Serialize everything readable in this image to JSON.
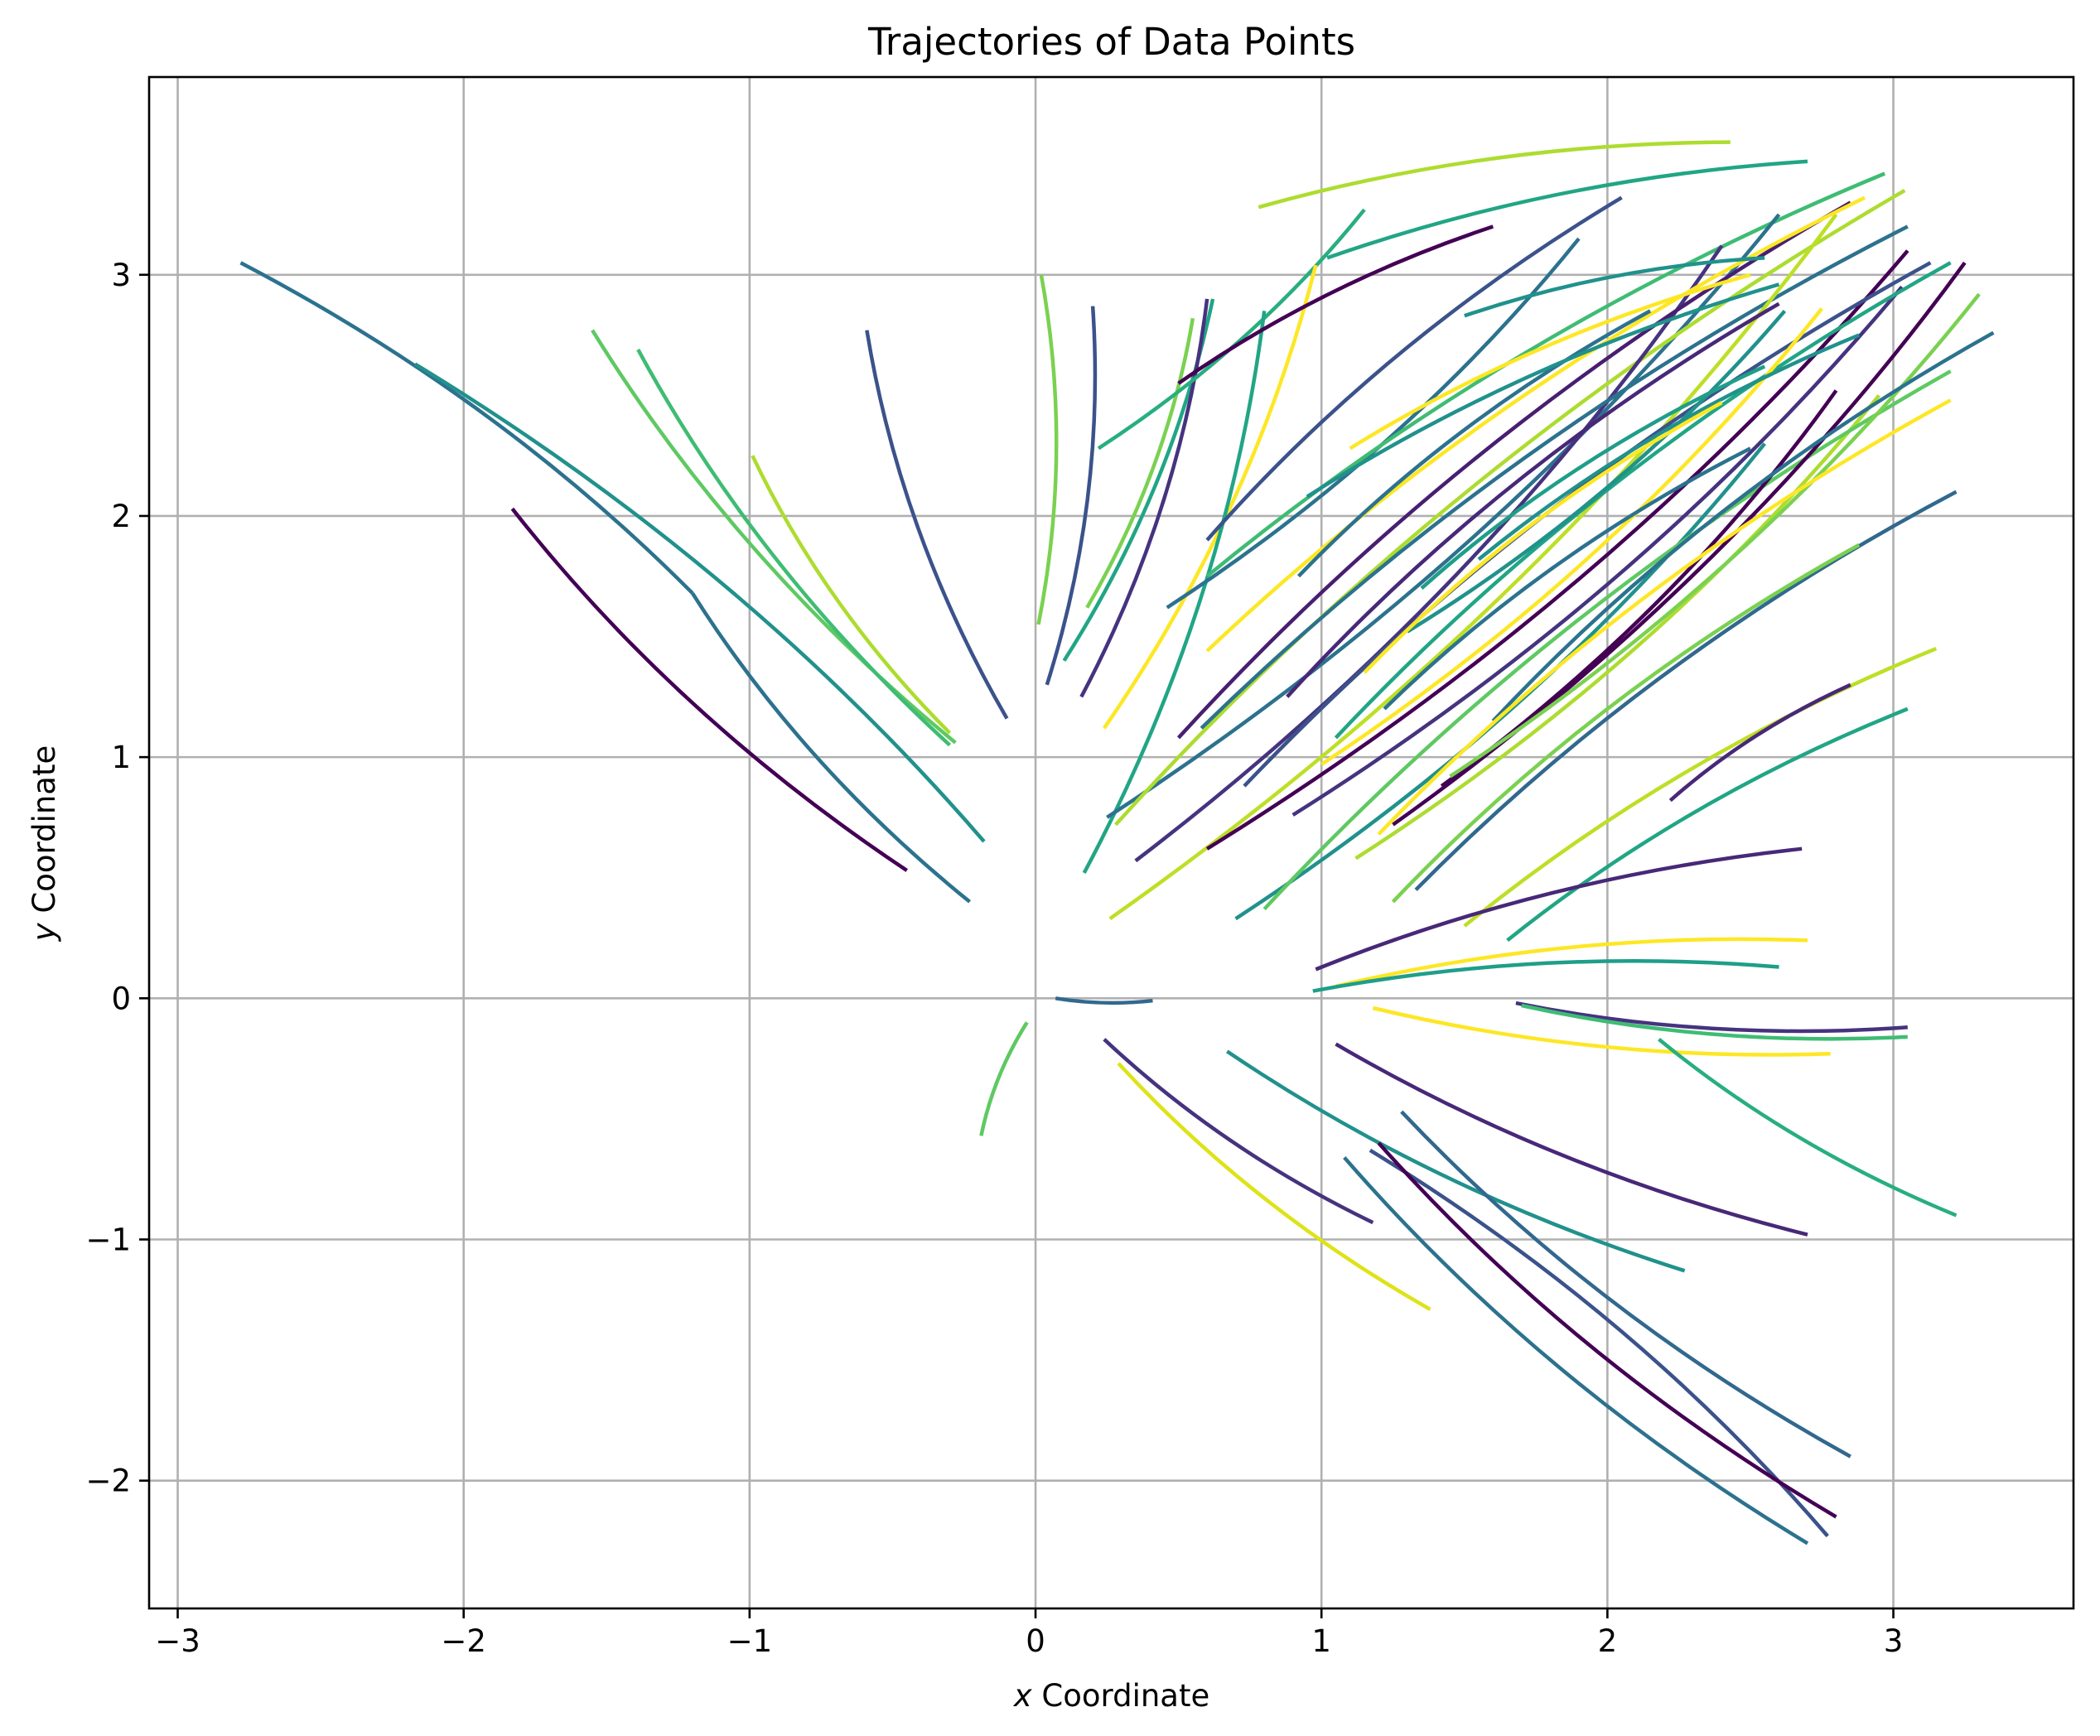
{
  "chart_data": {
    "type": "line",
    "title": "Trajectories of Data Points",
    "xlabel_var": "x",
    "xlabel_rest": " Coordinate",
    "ylabel_var": "y",
    "ylabel_rest": " Coordinate",
    "xlim": [
      -3.1,
      3.63
    ],
    "ylim": [
      -2.53,
      3.82
    ],
    "x_ticks": [
      -3,
      -2,
      -1,
      0,
      1,
      2,
      3
    ],
    "x_tick_labels": [
      "−3",
      "−2",
      "−1",
      "0",
      "1",
      "2",
      "3"
    ],
    "y_ticks": [
      -2,
      -1,
      0,
      1,
      2,
      3
    ],
    "y_tick_labels": [
      "−2",
      "−1",
      "0",
      "1",
      "2",
      "3"
    ],
    "grid": true,
    "colormap": "viridis",
    "series": [
      {
        "start": [
          -2.78,
          3.05
        ],
        "end": [
          -1.2,
          1.68
        ],
        "color": "#2c728e"
      },
      {
        "start": [
          -1.2,
          1.68
        ],
        "end": [
          -0.23,
          0.4
        ],
        "color": "#2c728e"
      },
      {
        "start": [
          -2.17,
          2.63
        ],
        "end": [
          -0.18,
          0.65
        ],
        "color": "#21918c"
      },
      {
        "start": [
          -1.83,
          2.03
        ],
        "end": [
          -0.45,
          0.53
        ],
        "color": "#440154"
      },
      {
        "start": [
          -1.55,
          2.77
        ],
        "end": [
          -0.28,
          1.06
        ],
        "color": "#5ec962"
      },
      {
        "start": [
          -1.39,
          2.69
        ],
        "end": [
          -0.3,
          1.05
        ],
        "color": "#3fbc73"
      },
      {
        "start": [
          -0.99,
          2.25
        ],
        "end": [
          -0.3,
          1.1
        ],
        "color": "#addc30"
      },
      {
        "start": [
          -0.59,
          2.77
        ],
        "end": [
          -0.1,
          1.16
        ],
        "color": "#3b528b"
      },
      {
        "start": [
          0.02,
          3.0
        ],
        "end": [
          0.01,
          1.55
        ],
        "color": "#7ad151"
      },
      {
        "start": [
          0.2,
          2.87
        ],
        "end": [
          0.04,
          1.3
        ],
        "color": "#3b528b"
      },
      {
        "start": [
          0.62,
          2.9
        ],
        "end": [
          0.1,
          1.4
        ],
        "color": "#21a585"
      },
      {
        "start": [
          0.6,
          2.9
        ],
        "end": [
          0.16,
          1.25
        ],
        "color": "#46337f"
      },
      {
        "start": [
          0.55,
          2.82
        ],
        "end": [
          0.18,
          1.62
        ],
        "color": "#7ad151"
      },
      {
        "start": [
          1.15,
          3.27
        ],
        "end": [
          0.22,
          2.28
        ],
        "color": "#28ae80"
      },
      {
        "start": [
          0.98,
          3.04
        ],
        "end": [
          0.24,
          1.12
        ],
        "color": "#fde725"
      },
      {
        "start": [
          0.8,
          2.85
        ],
        "end": [
          0.17,
          0.52
        ],
        "color": "#21a585"
      },
      {
        "start": [
          0.78,
          3.28
        ],
        "end": [
          2.43,
          3.55
        ],
        "color": "#addc30"
      },
      {
        "start": [
          1.02,
          3.07
        ],
        "end": [
          2.7,
          3.47
        ],
        "color": "#21a585"
      },
      {
        "start": [
          0.6,
          1.9
        ],
        "end": [
          2.05,
          3.32
        ],
        "color": "#3b528b"
      },
      {
        "start": [
          0.46,
          1.62
        ],
        "end": [
          1.9,
          3.15
        ],
        "color": "#2c728e"
      },
      {
        "start": [
          0.5,
          2.55
        ],
        "end": [
          1.6,
          3.2
        ],
        "color": "#440154"
      },
      {
        "start": [
          0.6,
          1.75
        ],
        "end": [
          2.97,
          3.42
        ],
        "color": "#3fbc73"
      },
      {
        "start": [
          0.25,
          0.75
        ],
        "end": [
          2.6,
          3.25
        ],
        "color": "#2c728e"
      },
      {
        "start": [
          0.28,
          0.72
        ],
        "end": [
          3.04,
          3.35
        ],
        "color": "#addc30"
      },
      {
        "start": [
          0.35,
          0.57
        ],
        "end": [
          2.4,
          3.12
        ],
        "color": "#46337f"
      },
      {
        "start": [
          0.5,
          1.08
        ],
        "end": [
          2.85,
          3.3
        ],
        "color": "#481f70"
      },
      {
        "start": [
          0.58,
          1.12
        ],
        "end": [
          3.05,
          3.2
        ],
        "color": "#2c728e"
      },
      {
        "start": [
          0.26,
          0.33
        ],
        "end": [
          2.8,
          3.25
        ],
        "color": "#bddf26"
      },
      {
        "start": [
          0.6,
          1.44
        ],
        "end": [
          2.9,
          3.32
        ],
        "color": "#fde725"
      },
      {
        "start": [
          0.6,
          0.62
        ],
        "end": [
          3.05,
          3.1
        ],
        "color": "#440154"
      },
      {
        "start": [
          0.73,
          0.88
        ],
        "end": [
          3.13,
          3.05
        ],
        "color": "#3b528b"
      },
      {
        "start": [
          0.88,
          1.25
        ],
        "end": [
          2.6,
          2.88
        ],
        "color": "#482878"
      },
      {
        "start": [
          0.9,
          0.76
        ],
        "end": [
          3.03,
          2.95
        ],
        "color": "#46337f"
      },
      {
        "start": [
          1.05,
          1.08
        ],
        "end": [
          3.2,
          3.05
        ],
        "color": "#21a585"
      },
      {
        "start": [
          1.0,
          0.97
        ],
        "end": [
          2.75,
          2.86
        ],
        "color": "#fde725"
      },
      {
        "start": [
          1.12,
          0.58
        ],
        "end": [
          2.95,
          2.5
        ],
        "color": "#addc30"
      },
      {
        "start": [
          0.7,
          0.33
        ],
        "end": [
          2.55,
          2.3
        ],
        "color": "#21918c"
      },
      {
        "start": [
          0.8,
          0.37
        ],
        "end": [
          3.2,
          2.6
        ],
        "color": "#5ec962"
      },
      {
        "start": [
          1.25,
          0.72
        ],
        "end": [
          3.25,
          3.05
        ],
        "color": "#440154"
      },
      {
        "start": [
          1.42,
          0.88
        ],
        "end": [
          2.8,
          2.52
        ],
        "color": "#440154"
      },
      {
        "start": [
          1.45,
          0.92
        ],
        "end": [
          3.3,
          2.92
        ],
        "color": "#7ad151"
      },
      {
        "start": [
          1.6,
          1.15
        ],
        "end": [
          3.35,
          2.76
        ],
        "color": "#2c728e"
      },
      {
        "start": [
          1.2,
          0.68
        ],
        "end": [
          3.2,
          2.48
        ],
        "color": "#fde725"
      },
      {
        "start": [
          1.33,
          0.45
        ],
        "end": [
          3.22,
          2.1
        ],
        "color": "#31688e"
      },
      {
        "start": [
          1.25,
          0.4
        ],
        "end": [
          2.88,
          1.88
        ],
        "color": "#7ad151"
      },
      {
        "start": [
          1.5,
          0.3
        ],
        "end": [
          3.15,
          1.45
        ],
        "color": "#bddf26"
      },
      {
        "start": [
          1.65,
          0.24
        ],
        "end": [
          3.05,
          1.2
        ],
        "color": "#21a585"
      },
      {
        "start": [
          2.22,
          0.82
        ],
        "end": [
          2.85,
          1.3
        ],
        "color": "#482878"
      },
      {
        "start": [
          0.92,
          1.75
        ],
        "end": [
          2.15,
          2.85
        ],
        "color": "#2c728e"
      },
      {
        "start": [
          0.95,
          2.08
        ],
        "end": [
          2.6,
          2.96
        ],
        "color": "#21918c"
      },
      {
        "start": [
          1.1,
          2.28
        ],
        "end": [
          2.5,
          3.0
        ],
        "color": "#fde725"
      },
      {
        "start": [
          1.5,
          2.83
        ],
        "end": [
          2.55,
          3.07
        ],
        "color": "#21918c"
      },
      {
        "start": [
          1.3,
          1.52
        ],
        "end": [
          2.62,
          2.85
        ],
        "color": "#21918c"
      },
      {
        "start": [
          1.35,
          1.7
        ],
        "end": [
          2.55,
          2.62
        ],
        "color": "#1f9e89"
      },
      {
        "start": [
          1.55,
          1.82
        ],
        "end": [
          2.88,
          2.75
        ],
        "color": "#21918c"
      },
      {
        "start": [
          1.15,
          1.35
        ],
        "end": [
          2.4,
          2.47
        ],
        "color": "#fde725"
      },
      {
        "start": [
          1.22,
          1.2
        ],
        "end": [
          2.5,
          2.28
        ],
        "color": "#2c728e"
      },
      {
        "start": [
          0.98,
          0.12
        ],
        "end": [
          2.68,
          0.62
        ],
        "color": "#482878"
      },
      {
        "start": [
          1.05,
          0.05
        ],
        "end": [
          2.7,
          0.24
        ],
        "color": "#fde725"
      },
      {
        "start": [
          0.97,
          0.03
        ],
        "end": [
          2.6,
          0.13
        ],
        "color": "#1f9e89"
      },
      {
        "start": [
          0.07,
          0.0
        ],
        "end": [
          0.41,
          -0.01
        ],
        "color": "#31688e"
      },
      {
        "start": [
          1.18,
          -0.04
        ],
        "end": [
          2.78,
          -0.23
        ],
        "color": "#fde725"
      },
      {
        "start": [
          1.68,
          -0.02
        ],
        "end": [
          3.05,
          -0.12
        ],
        "color": "#46337f"
      },
      {
        "start": [
          1.7,
          -0.03
        ],
        "end": [
          3.05,
          -0.16
        ],
        "color": "#3fbc73"
      },
      {
        "start": [
          2.18,
          -0.17
        ],
        "end": [
          3.22,
          -0.9
        ],
        "color": "#28ae80"
      },
      {
        "start": [
          1.05,
          -0.19
        ],
        "end": [
          2.7,
          -0.98
        ],
        "color": "#482878"
      },
      {
        "start": [
          -0.03,
          -0.1
        ],
        "end": [
          -0.19,
          -0.57
        ],
        "color": "#5ec962"
      },
      {
        "start": [
          0.24,
          -0.17
        ],
        "end": [
          1.18,
          -0.93
        ],
        "color": "#46337f"
      },
      {
        "start": [
          0.29,
          -0.27
        ],
        "end": [
          1.38,
          -1.29
        ],
        "color": "#dde318"
      },
      {
        "start": [
          0.67,
          -0.22
        ],
        "end": [
          2.27,
          -1.13
        ],
        "color": "#21918c"
      },
      {
        "start": [
          1.08,
          -0.66
        ],
        "end": [
          2.7,
          -2.26
        ],
        "color": "#2c728e"
      },
      {
        "start": [
          1.17,
          -0.63
        ],
        "end": [
          2.77,
          -2.23
        ],
        "color": "#3b528b"
      },
      {
        "start": [
          1.2,
          -0.6
        ],
        "end": [
          2.8,
          -2.15
        ],
        "color": "#440154"
      },
      {
        "start": [
          1.28,
          -0.47
        ],
        "end": [
          2.85,
          -1.9
        ],
        "color": "#31688e"
      }
    ]
  }
}
